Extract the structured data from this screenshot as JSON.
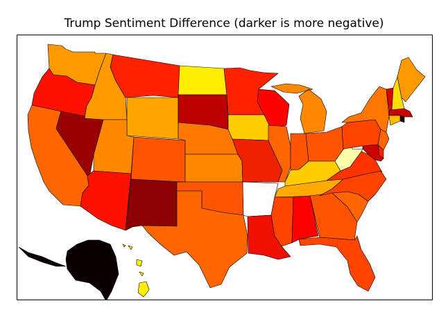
{
  "title": "Trump Sentiment Difference (darker is more negative)",
  "colors": {
    "WA": "#ff9900",
    "OR": "#ff1100",
    "CA": "#ff6600",
    "NV": "#990000",
    "ID": "#ff9900",
    "MT": "#ff2200",
    "WY": "#ffa500",
    "UT": "#ff8800",
    "AZ": "#ff1100",
    "CO": "#ff5500",
    "NM": "#8b0000",
    "ND": "#ffee00",
    "SD": "#bb0000",
    "NE": "#ff7700",
    "KS": "#ff8800",
    "OK": "#ff5500",
    "TX": "#ff6600",
    "MN": "#ff2200",
    "IA": "#ffcc00",
    "MO": "#ee2200",
    "AR": "#ffffff",
    "LA": "#ee1100",
    "WI": "#ff0000",
    "IL": "#ff6600",
    "MI": "#ff8800",
    "IN": "#ff5500",
    "OH": "#ff5500",
    "KY": "#ffcc00",
    "TN": "#ffaa00",
    "MS": "#ff4400",
    "AL": "#ff0000",
    "GA": "#ff5500",
    "FL": "#ff4400",
    "SC": "#ff6600",
    "NC": "#ff4400",
    "VA": "#ff3300",
    "WV": "#ffffaa",
    "PA": "#ff4400",
    "NY": "#ff7700",
    "ME": "#ff9900",
    "VT": "#dd0000",
    "NH": "#ffdd00",
    "MA": "#cc0000",
    "RI": "#220000",
    "CT": "#ffbb00",
    "NJ": "#ff6600",
    "DE": "#ff2200",
    "MD": "#cc0000",
    "AK": "#0a0000",
    "HI": "#ffee00"
  }
}
